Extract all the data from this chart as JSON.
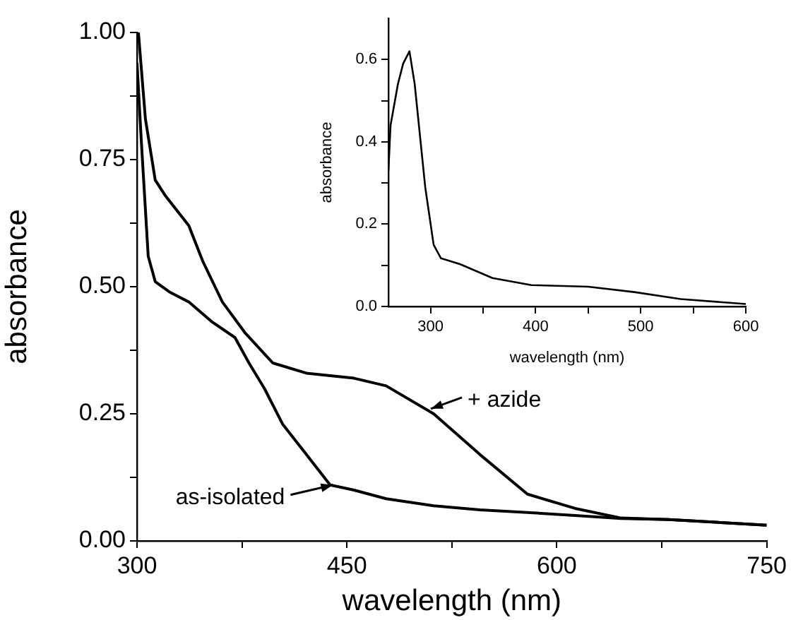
{
  "chart_data": [
    {
      "type": "line",
      "xlabel": "wavelength (nm)",
      "ylabel": "absorbance",
      "xlim": [
        300,
        750
      ],
      "ylim": [
        0,
        1
      ],
      "xticks": [
        300,
        {
          "value": 375,
          "label": null
        },
        450,
        {
          "value": 525,
          "label": null
        },
        600,
        {
          "value": 675,
          "label": null
        },
        750
      ],
      "yticks": [
        {
          "value": 0,
          "label": "0.00"
        },
        {
          "value": 0.125,
          "label": null
        },
        0.25,
        {
          "value": 0.375,
          "label": null
        },
        {
          "value": 0.5,
          "label": "0.50"
        },
        {
          "value": 0.625,
          "label": null
        },
        0.75,
        {
          "value": 0.875,
          "label": null
        },
        {
          "value": 1,
          "label": "1.00"
        }
      ],
      "grid": false,
      "legend": false,
      "marker": "none",
      "line_style": "solid",
      "series": [
        {
          "color": "#000000",
          "x": [
            300,
            303,
            308,
            313,
            323,
            337,
            354,
            370,
            380,
            391,
            404,
            421,
            438,
            455,
            478,
            512,
            545,
            579,
            613,
            646,
            680,
            750
          ],
          "values": [
            0.94,
            0.79,
            0.56,
            0.51,
            0.49,
            0.47,
            0.43,
            0.4,
            0.35,
            0.3,
            0.23,
            0.17,
            0.11,
            0.1,
            0.083,
            0.069,
            0.061,
            0.056,
            0.05,
            0.044,
            0.042,
            0.031
          ]
        },
        {
          "color": "#000000",
          "x": [
            301,
            306,
            313,
            320,
            337,
            347,
            361,
            377,
            397,
            421,
            455,
            478,
            512,
            545,
            579,
            613,
            646,
            680,
            750
          ],
          "values": [
            1.0,
            0.83,
            0.71,
            0.68,
            0.62,
            0.55,
            0.47,
            0.41,
            0.35,
            0.33,
            0.32,
            0.305,
            0.25,
            0.17,
            0.092,
            0.064,
            0.045,
            0.042,
            0.031
          ]
        }
      ],
      "annotations": [
        {
          "text": "as-isolated",
          "x": 440,
          "y": 0.11
        },
        {
          "text": "+ azide",
          "x": 510,
          "y": 0.26
        }
      ]
    },
    {
      "type": "line",
      "xlabel": "wavelength (nm)",
      "ylabel": "absorbance",
      "xlim": [
        260,
        600
      ],
      "ylim": [
        0,
        0.7
      ],
      "xticks": [
        300,
        {
          "value": 350,
          "label": null
        },
        400,
        {
          "value": 450,
          "label": null
        },
        500,
        {
          "value": 550,
          "label": null
        },
        600
      ],
      "yticks": [
        {
          "value": 0,
          "label": "0.0"
        },
        {
          "value": 0.1,
          "label": null
        },
        0.2,
        {
          "value": 0.3,
          "label": null
        },
        0.4,
        {
          "value": 0.5,
          "label": null
        },
        0.6
      ],
      "grid": false,
      "legend": false,
      "marker": "none",
      "line_style": "solid",
      "series": [
        {
          "color": "#000000",
          "x": [
            260,
            262,
            269,
            274,
            280,
            285,
            295,
            303,
            310,
            328,
            359,
            396,
            450,
            494,
            538,
            600
          ],
          "values": [
            0.33,
            0.44,
            0.54,
            0.59,
            0.62,
            0.54,
            0.29,
            0.15,
            0.117,
            0.103,
            0.069,
            0.052,
            0.048,
            0.035,
            0.018,
            0.006
          ]
        }
      ]
    }
  ]
}
